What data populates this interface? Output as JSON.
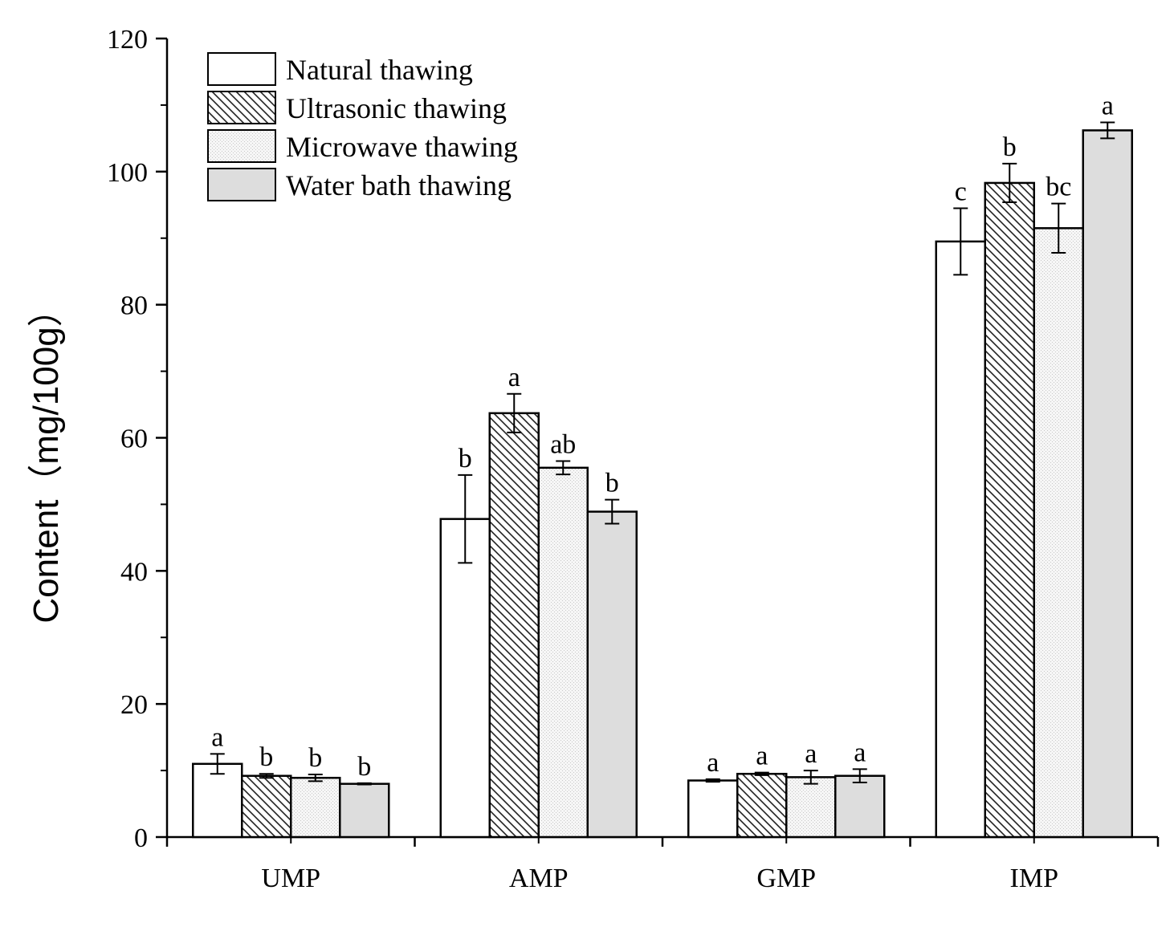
{
  "chart_data": {
    "type": "bar",
    "title": "",
    "xlabel": "",
    "ylabel": "Content（mg/100g）",
    "ylim": [
      0,
      120
    ],
    "yticks": [
      0,
      20,
      40,
      60,
      80,
      100,
      120
    ],
    "grid": false,
    "legend_position": "top-left",
    "categories": [
      "UMP",
      "AMP",
      "GMP",
      "IMP"
    ],
    "series": [
      {
        "name": "Natural thawing",
        "fill": "#ffffff",
        "pattern": "none",
        "values": [
          11.0,
          47.8,
          8.5,
          89.5
        ],
        "errors": [
          1.5,
          6.6,
          0.2,
          5.0
        ],
        "labels": [
          "a",
          "b",
          "a",
          "c"
        ]
      },
      {
        "name": "Ultrasonic thawing",
        "fill": "#ffffff",
        "pattern": "diagonal-hatch",
        "values": [
          9.2,
          63.7,
          9.5,
          98.3
        ],
        "errors": [
          0.3,
          2.9,
          0.2,
          2.9
        ],
        "labels": [
          "b",
          "a",
          "a",
          "b"
        ]
      },
      {
        "name": "Microwave thawing",
        "fill": "#f4f4f4",
        "pattern": "dots",
        "values": [
          8.9,
          55.5,
          9.0,
          91.5
        ],
        "errors": [
          0.5,
          1.0,
          1.0,
          3.7
        ],
        "labels": [
          "b",
          "ab",
          "a",
          "bc"
        ]
      },
      {
        "name": "Water bath thawing",
        "fill": "#dddddd",
        "pattern": "none",
        "values": [
          8.0,
          48.9,
          9.2,
          106.2
        ],
        "errors": [
          0.1,
          1.8,
          1.0,
          1.2
        ],
        "labels": [
          "b",
          "b",
          "a",
          "a"
        ]
      }
    ]
  }
}
